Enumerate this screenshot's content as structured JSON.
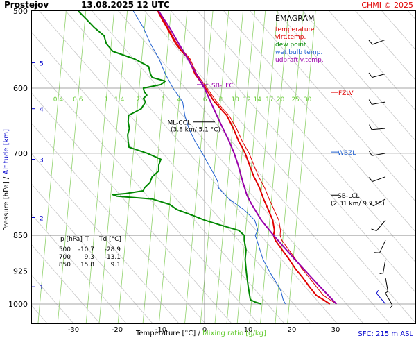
{
  "header": {
    "station": "Prostejov",
    "datetime": "13.08.2025 12 UTC",
    "source": "CHMI © 2025"
  },
  "legend": {
    "title": "EMAGRAM",
    "items": [
      {
        "label": "temperature",
        "color": "#e00000"
      },
      {
        "label": "virt.temp.",
        "color": "#e00000"
      },
      {
        "label": "dew point",
        "color": "#008800"
      },
      {
        "label": "wet bulb temp.",
        "color": "#2060d0"
      },
      {
        "label": "udpraft v.temp.",
        "color": "#9900aa"
      }
    ]
  },
  "footer": {
    "sfc": "SFC: 215 m ASL"
  },
  "data_table": {
    "headers": [
      "p [hPa]",
      "T",
      "Td [°C]"
    ],
    "rows": [
      [
        "500",
        "-10.7",
        "-28.9"
      ],
      [
        "700",
        "9.3",
        "-13.1"
      ],
      [
        "850",
        "15.8",
        "9.1"
      ]
    ]
  },
  "chart_data": {
    "type": "line",
    "title": "EMAGRAM",
    "xlabel": "Temperature [°C] / Mixing ratio [g/kg]",
    "ylabel": "Pressure [hPa] / Altitude [km]",
    "y_scale": "log",
    "xlim": [
      -35,
      33
    ],
    "ylim": [
      1000,
      500
    ],
    "x_ticks": [
      -30,
      -20,
      -10,
      0,
      10,
      20,
      30
    ],
    "pressure_ticks": [
      500,
      600,
      700,
      850,
      925,
      1000
    ],
    "altitude_ticks": [
      {
        "label": "1",
        "p": 960
      },
      {
        "label": "2",
        "p": 815
      },
      {
        "label": "3",
        "p": 710
      },
      {
        "label": "4",
        "p": 630
      },
      {
        "label": "5",
        "p": 565
      }
    ],
    "mixing_ratio_labels": [
      "0.4",
      "0.6",
      "1",
      "1.4",
      "2",
      "3",
      "4",
      "6",
      "8",
      "10",
      "12",
      "14",
      "17",
      "20",
      "25",
      "30"
    ],
    "mixing_ratio_label_x": [
      -33.5,
      -29.0,
      -22.5,
      -19.5,
      -15.2,
      -9.5,
      -5.8,
      0.1,
      3.7,
      7.0,
      9.7,
      12.1,
      14.9,
      17.4,
      20.8,
      23.6
    ],
    "annotations": {
      "sb_lfc": {
        "label": "SB-LFC",
        "p": 595
      },
      "ml_ccl": {
        "label": "ML-CCL",
        "sub": "(3.8 km/ 5.1 °C)",
        "p": 650
      },
      "fzlv": {
        "label": "FZLV",
        "p": 606
      },
      "wbzl": {
        "label": "WBZL",
        "p": 698
      },
      "sb_lcl": {
        "label": "SB-LCL",
        "sub": "(2.31 km/ 9.7 °C)",
        "p": 773
      }
    },
    "series": [
      {
        "name": "temperature",
        "color": "#e00000",
        "width": 2,
        "p": [
          1000,
          990,
          980,
          960,
          940,
          920,
          900,
          880,
          860,
          850,
          840,
          820,
          800,
          780,
          760,
          750,
          740,
          720,
          700,
          690,
          680,
          660,
          640,
          620,
          600,
          590,
          580,
          560,
          550,
          540,
          520,
          510,
          500
        ],
        "t": [
          28.7,
          27.2,
          25.6,
          24.0,
          22.5,
          20.8,
          19.4,
          17.8,
          16.2,
          15.8,
          16.0,
          15.6,
          14.6,
          13.5,
          12.6,
          12.0,
          11.3,
          10.3,
          9.3,
          8.6,
          7.8,
          6.6,
          5.1,
          2.3,
          0.2,
          -1.0,
          -2.2,
          -3.6,
          -5.2,
          -6.6,
          -8.6,
          -9.7,
          -10.7
        ]
      },
      {
        "name": "virt.temp.",
        "color": "#e00000",
        "width": 1,
        "p": [
          1000,
          980,
          960,
          940,
          920,
          900,
          880,
          860,
          850,
          840,
          820,
          800,
          780,
          760,
          740,
          720,
          700,
          680,
          660,
          640,
          620,
          600,
          580,
          560,
          540,
          520,
          500
        ],
        "t": [
          30.2,
          27.2,
          25.6,
          24.0,
          22.3,
          20.9,
          19.3,
          17.7,
          17.3,
          17.4,
          17.0,
          15.9,
          14.8,
          13.8,
          12.4,
          11.3,
          10.2,
          8.6,
          7.3,
          5.6,
          2.8,
          0.6,
          -1.8,
          -3.3,
          -6.3,
          -8.4,
          -10.5
        ]
      },
      {
        "name": "dew point",
        "color": "#008800",
        "width": 2,
        "p": [
          1000,
          995,
          990,
          960,
          930,
          900,
          880,
          860,
          850,
          840,
          830,
          820,
          810,
          800,
          790,
          780,
          775,
          772,
          770,
          765,
          760,
          750,
          740,
          730,
          720,
          710,
          700,
          690,
          680,
          670,
          660,
          650,
          640,
          630,
          620,
          615,
          610,
          605,
          600,
          595,
          590,
          585,
          580,
          570,
          560,
          550,
          540,
          530,
          520,
          510,
          500
        ],
        "t": [
          13.0,
          11.5,
          10.5,
          10.0,
          9.6,
          9.3,
          9.5,
          9.1,
          9.1,
          7.8,
          3.8,
          0.0,
          -3.0,
          -6.3,
          -8.0,
          -12.0,
          -20.0,
          -21.0,
          -18.0,
          -14.0,
          -13.8,
          -12.5,
          -12.0,
          -10.5,
          -10.5,
          -10.0,
          -13.1,
          -17.3,
          -17.5,
          -17.6,
          -17.2,
          -17.5,
          -17.4,
          -14.5,
          -13.5,
          -14.0,
          -13.2,
          -13.8,
          -14.0,
          -10.0,
          -9.0,
          -12.0,
          -12.4,
          -12.8,
          -16.0,
          -21.0,
          -22.5,
          -23.0,
          -25.2,
          -27.0,
          -28.9
        ]
      },
      {
        "name": "wet bulb temp.",
        "color": "#2060d0",
        "width": 1,
        "p": [
          1000,
          990,
          970,
          950,
          930,
          900,
          880,
          860,
          850,
          840,
          820,
          800,
          780,
          760,
          750,
          740,
          720,
          700,
          680,
          660,
          640,
          620,
          600,
          580,
          560,
          540,
          520,
          500
        ],
        "t": [
          18.5,
          18.0,
          17.5,
          16.4,
          15.1,
          13.4,
          12.7,
          12.0,
          11.6,
          12.2,
          11.5,
          9.0,
          5.6,
          3.2,
          3.1,
          2.5,
          1.0,
          -0.5,
          -2.2,
          -3.6,
          -4.5,
          -5.0,
          -7.2,
          -9.0,
          -10.4,
          -12.4,
          -14.0,
          -16.3
        ]
      },
      {
        "name": "udpraft v.temp.",
        "color": "#9900aa",
        "width": 2,
        "p": [
          1000,
          950,
          900,
          850,
          820,
          790,
          773,
          750,
          720,
          700,
          680,
          650,
          620,
          600,
          580,
          560,
          540,
          520,
          500
        ],
        "t": [
          30.2,
          25.5,
          20.7,
          15.8,
          13.0,
          10.8,
          9.7,
          8.8,
          7.7,
          6.8,
          5.6,
          3.5,
          1.4,
          0.0,
          -1.9,
          -3.8,
          -5.9,
          -8.0,
          -10.5
        ]
      }
    ],
    "wind_barbs": [
      {
        "p": 535,
        "dir": 250,
        "spd": 10
      },
      {
        "p": 580,
        "dir": 255,
        "spd": 10
      },
      {
        "p": 620,
        "dir": 260,
        "spd": 10
      },
      {
        "p": 660,
        "dir": 265,
        "spd": 10
      },
      {
        "p": 700,
        "dir": 260,
        "spd": 10
      },
      {
        "p": 740,
        "dir": 250,
        "spd": 10
      },
      {
        "p": 780,
        "dir": 240,
        "spd": 10
      },
      {
        "p": 820,
        "dir": 220,
        "spd": 10
      },
      {
        "p": 860,
        "dir": 205,
        "spd": 10
      },
      {
        "p": 900,
        "dir": 190,
        "spd": 5
      },
      {
        "p": 940,
        "dir": 170,
        "spd": 5
      },
      {
        "p": 975,
        "dir": 150,
        "spd": 5
      },
      {
        "p": 1000,
        "dir": 320,
        "spd": 5
      }
    ]
  }
}
